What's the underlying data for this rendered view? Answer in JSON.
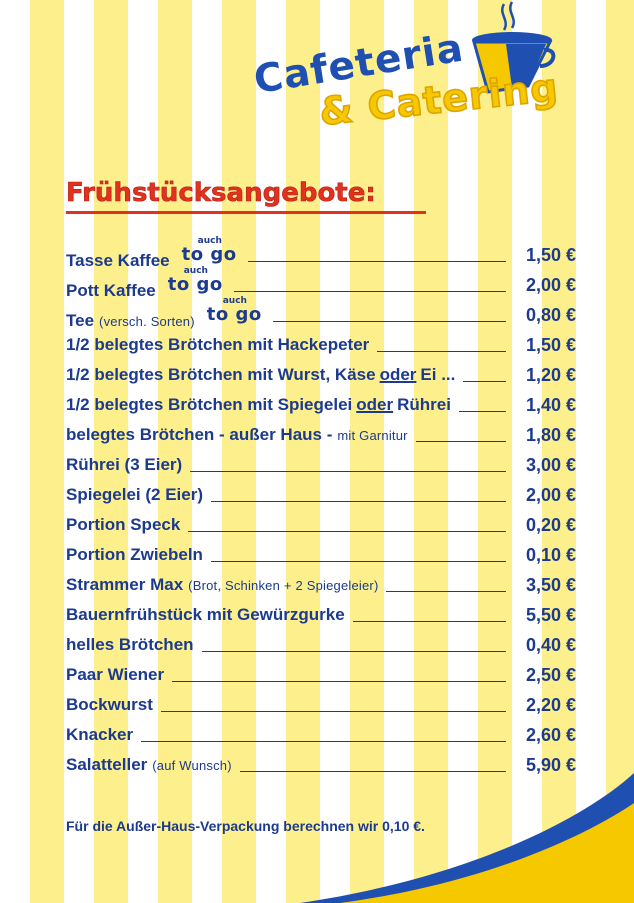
{
  "logo": {
    "line1": "Cafeteria",
    "line2": "& Catering"
  },
  "heading": "Frühstücksangebote:",
  "togo": {
    "auch": "auch",
    "main": "to go"
  },
  "items": [
    {
      "name": "Tasse Kaffee",
      "price": "1,50 €",
      "togo": true
    },
    {
      "name": "Pott Kaffee",
      "price": "2,00 €",
      "togo": true
    },
    {
      "name": "Tee",
      "note": "(versch. Sorten)",
      "price": "0,80 €",
      "togo": true
    },
    {
      "name": "1/2 belegtes Brötchen mit Hackepeter",
      "price": "1,50 €"
    },
    {
      "name": "1/2 belegtes Brötchen mit Wurst, Käse",
      "underlined": "oder",
      "tail": "Ei ...",
      "price": "1,20 €"
    },
    {
      "name": "1/2 belegtes Brötchen mit Spiegelei",
      "underlined": "oder",
      "tail": "Rührei",
      "price": "1,40 €"
    },
    {
      "name": "belegtes Brötchen - außer Haus -",
      "note": "mit Garnitur",
      "price": "1,80 €"
    },
    {
      "name": "Rührei (3 Eier)",
      "price": "3,00 €"
    },
    {
      "name": "Spiegelei (2 Eier)",
      "price": "2,00 €"
    },
    {
      "name": "Portion Speck",
      "price": "0,20 €"
    },
    {
      "name": "Portion Zwiebeln",
      "price": "0,10 €"
    },
    {
      "name": "Strammer Max",
      "note": "(Brot, Schinken + 2 Spiegeleier)",
      "price": "3,50 €"
    },
    {
      "name": "Bauernfrühstück mit Gewürzgurke",
      "price": "5,50 €"
    },
    {
      "name": "helles Brötchen",
      "price": "0,40 €"
    },
    {
      "name": "Paar Wiener",
      "price": "2,50 €"
    },
    {
      "name": "Bockwurst",
      "price": "2,20 €"
    },
    {
      "name": "Knacker",
      "price": "2,60 €"
    },
    {
      "name": "Salatteller",
      "note": "(auf Wunsch)",
      "price": "5,90 €"
    }
  ],
  "footer": "Für die Außer-Haus-Verpackung berechnen wir 0,10 €.",
  "colors": {
    "blue": "#1c3a8e",
    "red": "#e2311f",
    "yellow": "#f5c800",
    "stripe": "#fdf08c"
  },
  "icons": {
    "logo": "coffee-cup-icon"
  }
}
